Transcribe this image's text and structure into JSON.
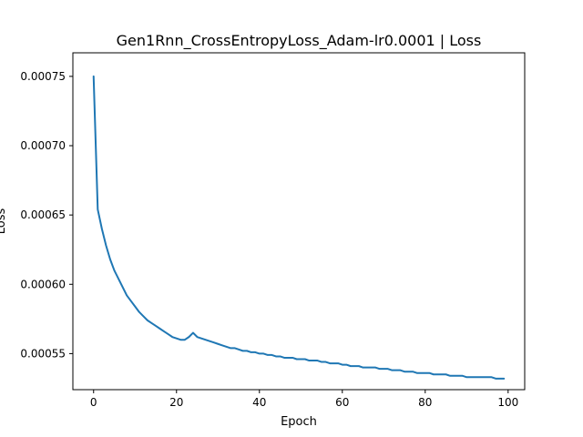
{
  "chart_data": {
    "type": "line",
    "title": "Gen1Rnn_CrossEntropyLoss_Adam-lr0.0001 | Loss",
    "xlabel": "Epoch",
    "ylabel": "Loss",
    "xlim": [
      -5,
      104
    ],
    "ylim": [
      0.000524,
      0.000767
    ],
    "x_ticks": [
      0,
      20,
      40,
      60,
      80,
      100
    ],
    "x_tick_labels": [
      "0",
      "20",
      "40",
      "60",
      "80",
      "100"
    ],
    "y_ticks": [
      0.00055,
      0.0006,
      0.00065,
      0.0007,
      0.00075
    ],
    "y_tick_labels": [
      "0.00055",
      "0.00060",
      "0.00065",
      "0.00070",
      "0.00075"
    ],
    "grid": false,
    "series": [
      {
        "name": "Loss",
        "color": "#1f77b4",
        "x": [
          0,
          1,
          2,
          3,
          4,
          5,
          6,
          7,
          8,
          9,
          10,
          11,
          12,
          13,
          14,
          15,
          16,
          17,
          18,
          19,
          20,
          21,
          22,
          23,
          24,
          25,
          26,
          27,
          28,
          29,
          30,
          31,
          32,
          33,
          34,
          35,
          36,
          37,
          38,
          39,
          40,
          41,
          42,
          43,
          44,
          45,
          46,
          47,
          48,
          49,
          50,
          51,
          52,
          53,
          54,
          55,
          56,
          57,
          58,
          59,
          60,
          61,
          62,
          63,
          64,
          65,
          66,
          67,
          68,
          69,
          70,
          71,
          72,
          73,
          74,
          75,
          76,
          77,
          78,
          79,
          80,
          81,
          82,
          83,
          84,
          85,
          86,
          87,
          88,
          89,
          90,
          91,
          92,
          93,
          94,
          95,
          96,
          97,
          98,
          99
        ],
        "values": [
          0.00075,
          0.000654,
          0.00064,
          0.000628,
          0.000618,
          0.00061,
          0.000604,
          0.000598,
          0.000592,
          0.000588,
          0.000584,
          0.00058,
          0.000577,
          0.000574,
          0.000572,
          0.00057,
          0.000568,
          0.000566,
          0.000564,
          0.000562,
          0.000561,
          0.00056,
          0.00056,
          0.000562,
          0.000565,
          0.000562,
          0.000561,
          0.00056,
          0.000559,
          0.000558,
          0.000557,
          0.000556,
          0.000555,
          0.000554,
          0.000554,
          0.000553,
          0.000552,
          0.000552,
          0.000551,
          0.000551,
          0.00055,
          0.00055,
          0.000549,
          0.000549,
          0.000548,
          0.000548,
          0.000547,
          0.000547,
          0.000547,
          0.000546,
          0.000546,
          0.000546,
          0.000545,
          0.000545,
          0.000545,
          0.000544,
          0.000544,
          0.000543,
          0.000543,
          0.000543,
          0.000542,
          0.000542,
          0.000541,
          0.000541,
          0.000541,
          0.00054,
          0.00054,
          0.00054,
          0.00054,
          0.000539,
          0.000539,
          0.000539,
          0.000538,
          0.000538,
          0.000538,
          0.000537,
          0.000537,
          0.000537,
          0.000536,
          0.000536,
          0.000536,
          0.000536,
          0.000535,
          0.000535,
          0.000535,
          0.000535,
          0.000534,
          0.000534,
          0.000534,
          0.000534,
          0.000533,
          0.000533,
          0.000533,
          0.000533,
          0.000533,
          0.000533,
          0.000533,
          0.000532,
          0.000532,
          0.000532
        ]
      }
    ]
  }
}
